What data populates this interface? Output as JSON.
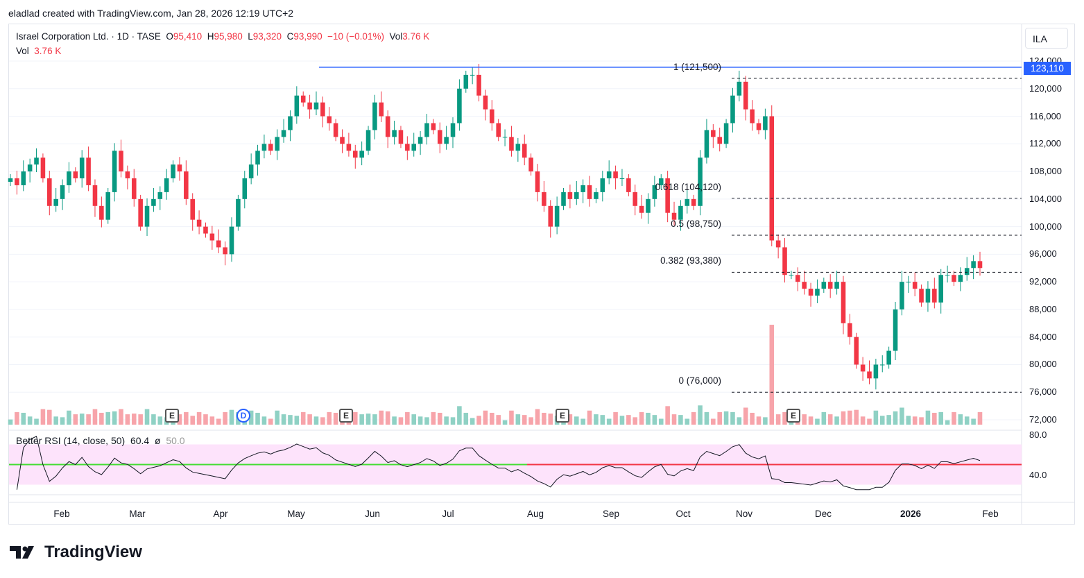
{
  "credit": "eladlad created with TradingView.com, Jan 28, 2026 12:19 UTC+2",
  "legend": {
    "symbol": "Israel Corporation Ltd. · 1D · TASE",
    "o_label": "O",
    "o": "95,410",
    "h_label": "H",
    "h": "95,980",
    "l_label": "L",
    "l": "93,320",
    "c_label": "C",
    "c": "93,990",
    "change": "−10 (−0.01%)",
    "vol_label": "Vol",
    "vol": "3.76 K",
    "vol2_label": "Vol",
    "vol2": "3.76 K"
  },
  "currency": "ILA",
  "current_price_label": "123,110",
  "rsi": {
    "label": "Better RSI (14, close, 50)",
    "value": "60.4",
    "avg_symbol": "ø",
    "avg": "50.0",
    "ticks": [
      "80.0",
      "40.0"
    ]
  },
  "logo": "TradingView",
  "events": [
    {
      "type": "E",
      "month": "Mar"
    },
    {
      "type": "D",
      "month": "Apr"
    },
    {
      "type": "E",
      "month": "May"
    },
    {
      "type": "E",
      "month": "Aug"
    },
    {
      "type": "E",
      "month": "Nov"
    }
  ],
  "fib": [
    {
      "label": "1 (121,500)",
      "price": 121500
    },
    {
      "label": "0.618 (104,120)",
      "price": 104120
    },
    {
      "label": "0.5 (98,750)",
      "price": 98750
    },
    {
      "label": "0.382 (93,380)",
      "price": 93380
    },
    {
      "label": "0 (76,000)",
      "price": 76000
    }
  ],
  "chart_data": {
    "type": "candlestick",
    "title": "Israel Corporation Ltd. · 1D · TASE",
    "ylabel": "ILA",
    "ylim": [
      72000,
      124000
    ],
    "yticks": [
      "124,000",
      "120,000",
      "116,000",
      "112,000",
      "108,000",
      "104,000",
      "100,000",
      "96,000",
      "92,000",
      "88,000",
      "84,000",
      "80,000",
      "76,000",
      "72,000"
    ],
    "xticks": [
      "Feb",
      "Mar",
      "Apr",
      "May",
      "Jun",
      "Jul",
      "Aug",
      "Sep",
      "Oct",
      "Nov",
      "Dec",
      "2026",
      "Feb"
    ],
    "horizontal_line": 123110,
    "closes": [
      107,
      106,
      108,
      109,
      110,
      107,
      103,
      104,
      106,
      108,
      107,
      110,
      106,
      103,
      101,
      105,
      111,
      108,
      107,
      104,
      100,
      103,
      104,
      105,
      107,
      109,
      108,
      104,
      101,
      100,
      99,
      98,
      97,
      96,
      100,
      104,
      107,
      109,
      111,
      112,
      111,
      113,
      114,
      116,
      119,
      118,
      117,
      118,
      116,
      115,
      113,
      112,
      111,
      110,
      111,
      114,
      118,
      116,
      113,
      114,
      112,
      111,
      112,
      113,
      115,
      114,
      112,
      113,
      115,
      120,
      122,
      122,
      119,
      117,
      115,
      113,
      113,
      111,
      112,
      110,
      108,
      105,
      103,
      100,
      103,
      105,
      104,
      105,
      106,
      104,
      105,
      107,
      108,
      107,
      107,
      105,
      103,
      102,
      104,
      106,
      107,
      102,
      101,
      103,
      104,
      103,
      110,
      114,
      113,
      112,
      115,
      119,
      121,
      117,
      115,
      114,
      116,
      98,
      97,
      93,
      93,
      92,
      91,
      90,
      91,
      92,
      91,
      92,
      86,
      84,
      80,
      79,
      78,
      80,
      80,
      82,
      88,
      92,
      92,
      91,
      89,
      91,
      89,
      93,
      93,
      92,
      93,
      94,
      95,
      94
    ],
    "close_unit": 1000,
    "volume_spike_month": "Nov"
  }
}
